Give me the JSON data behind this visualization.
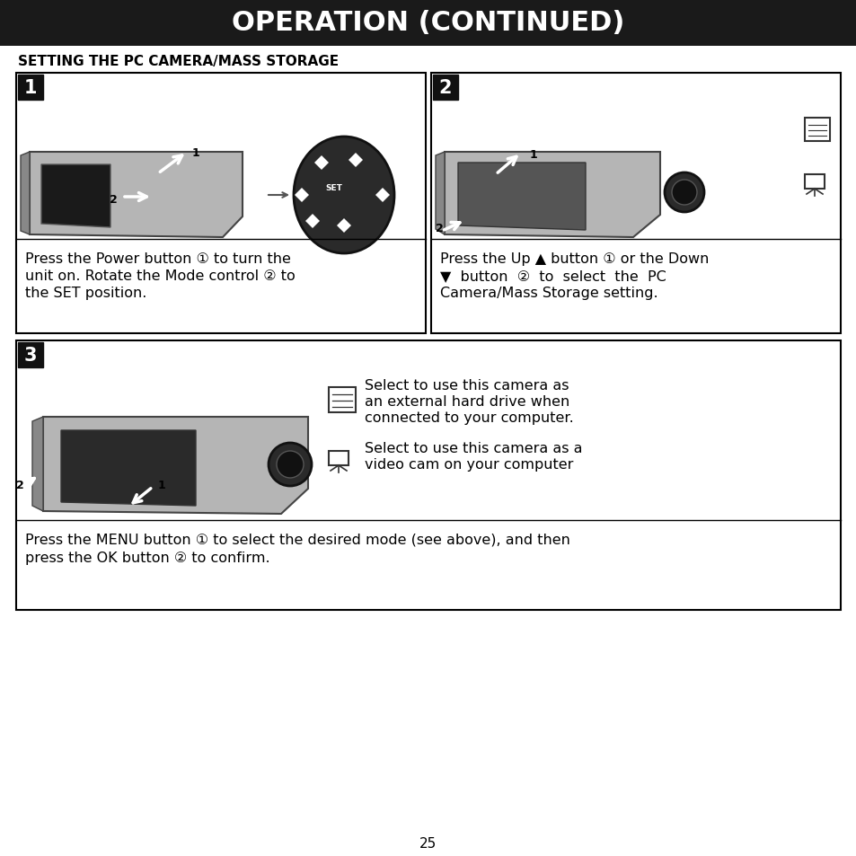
{
  "title": "OPERATION (CONTINUED)",
  "title_bg": "#1a1a1a",
  "title_color": "#ffffff",
  "title_fontsize": 22,
  "section_heading": "SETTING THE PC CAMERA/MASS STORAGE",
  "section_heading_fontsize": 11,
  "bg_color": "#ffffff",
  "page_number": "25",
  "box1_text_lines": [
    "Press the Power button ① to turn the",
    "unit on. Rotate the Mode control ② to",
    "the SET position."
  ],
  "box2_text_lines": [
    "Press the Up ▲ button ① or the Down",
    "▼  button  ②  to  select  the  PC",
    "Camera/Mass Storage setting."
  ],
  "box3_icon1_lines": [
    "Select to use this camera as",
    "an external hard drive when",
    "connected to your computer."
  ],
  "box3_icon2_lines": [
    "Select to use this camera as a",
    "video cam on your computer"
  ],
  "bottom_text_lines": [
    "Press the MENU button ① to select the desired mode (see above), and then",
    "press the OK button ② to confirm."
  ],
  "body_fontsize": 11.5
}
